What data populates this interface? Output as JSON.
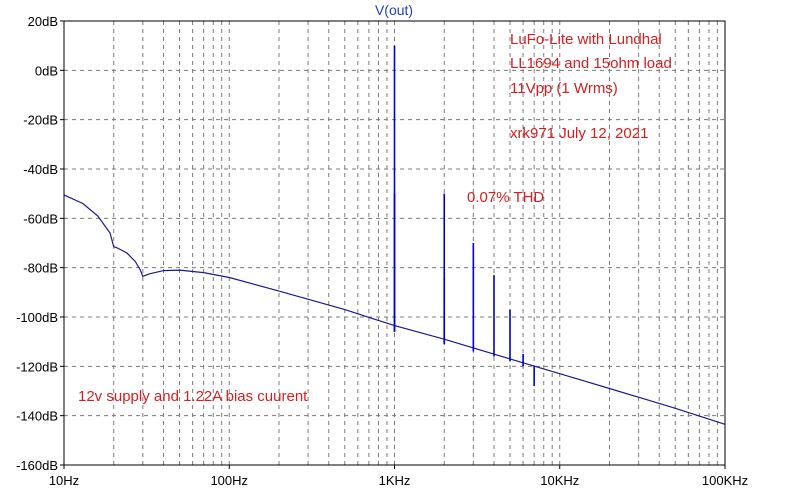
{
  "chart_data": {
    "type": "line",
    "title": "V(out)",
    "xscale": "log",
    "xlim": [
      10,
      100000
    ],
    "ylim": [
      -160,
      20
    ],
    "x_ticks": [
      {
        "value": 10,
        "label": "10Hz"
      },
      {
        "value": 100,
        "label": "100Hz"
      },
      {
        "value": 1000,
        "label": "1KHz"
      },
      {
        "value": 10000,
        "label": "10KHz"
      },
      {
        "value": 100000,
        "label": "100KHz"
      }
    ],
    "y_ticks": [
      {
        "value": 20,
        "label": "20dB"
      },
      {
        "value": 0,
        "label": "0dB"
      },
      {
        "value": -20,
        "label": "-20dB"
      },
      {
        "value": -40,
        "label": "-40dB"
      },
      {
        "value": -60,
        "label": "-60dB"
      },
      {
        "value": -80,
        "label": "-80dB"
      },
      {
        "value": -100,
        "label": "-100dB"
      },
      {
        "value": -120,
        "label": "-120dB"
      },
      {
        "value": -140,
        "label": "-140dB"
      },
      {
        "value": -160,
        "label": "-160dB"
      }
    ],
    "grid": true,
    "grid_style": "dashed",
    "series_color": "#1a1a8c",
    "spike_color": "#0000cc",
    "annotation_color": "#d22020",
    "noise_floor": [
      {
        "x": 10,
        "y": -50.5
      },
      {
        "x": 13,
        "y": -54
      },
      {
        "x": 16,
        "y": -59
      },
      {
        "x": 19,
        "y": -66
      },
      {
        "x": 20,
        "y": -71.5
      },
      {
        "x": 21,
        "y": -72
      },
      {
        "x": 24,
        "y": -74
      },
      {
        "x": 27,
        "y": -77.5
      },
      {
        "x": 29,
        "y": -81
      },
      {
        "x": 30,
        "y": -83.5
      },
      {
        "x": 33,
        "y": -82.5
      },
      {
        "x": 40,
        "y": -81.2
      },
      {
        "x": 50,
        "y": -81
      },
      {
        "x": 70,
        "y": -82
      },
      {
        "x": 100,
        "y": -84
      },
      {
        "x": 200,
        "y": -89.5
      },
      {
        "x": 500,
        "y": -97
      },
      {
        "x": 1000,
        "y": -103.5
      },
      {
        "x": 2000,
        "y": -109
      },
      {
        "x": 5000,
        "y": -117
      },
      {
        "x": 10000,
        "y": -123
      },
      {
        "x": 20000,
        "y": -129
      },
      {
        "x": 50000,
        "y": -137
      },
      {
        "x": 100000,
        "y": -143.5
      }
    ],
    "harmonics": [
      {
        "f": 1000,
        "top": 10,
        "base": -106
      },
      {
        "f": 1000,
        "top": -50,
        "base": -106
      },
      {
        "f": 2000,
        "top": -50,
        "base": -111
      },
      {
        "f": 2000,
        "top": -84,
        "base": -111
      },
      {
        "f": 3000,
        "top": -70,
        "base": -114
      },
      {
        "f": 4000,
        "top": -83,
        "base": -116
      },
      {
        "f": 5000,
        "top": -97,
        "base": -118
      },
      {
        "f": 6000,
        "top": -115,
        "base": -120
      },
      {
        "f": 7000,
        "top": -120,
        "base": -128
      }
    ],
    "annotations": [
      {
        "text": "LuFo-Lite with Lundhal",
        "x": 1000,
        "y": 18
      },
      {
        "text": "LL1694 and 15ohm load",
        "x": 1000,
        "y": 10
      },
      {
        "text": "11Vpp (1 Wrms)",
        "x": 1000,
        "y": 2
      },
      {
        "text": "xrk971  July 12, 2021",
        "x": 1000,
        "y": -16
      },
      {
        "text": "0.07% THD",
        "x": 1000,
        "y": -63
      },
      {
        "text": "12v supply and 1.22A bias cuurent",
        "x": 1000,
        "y": -149
      }
    ]
  }
}
